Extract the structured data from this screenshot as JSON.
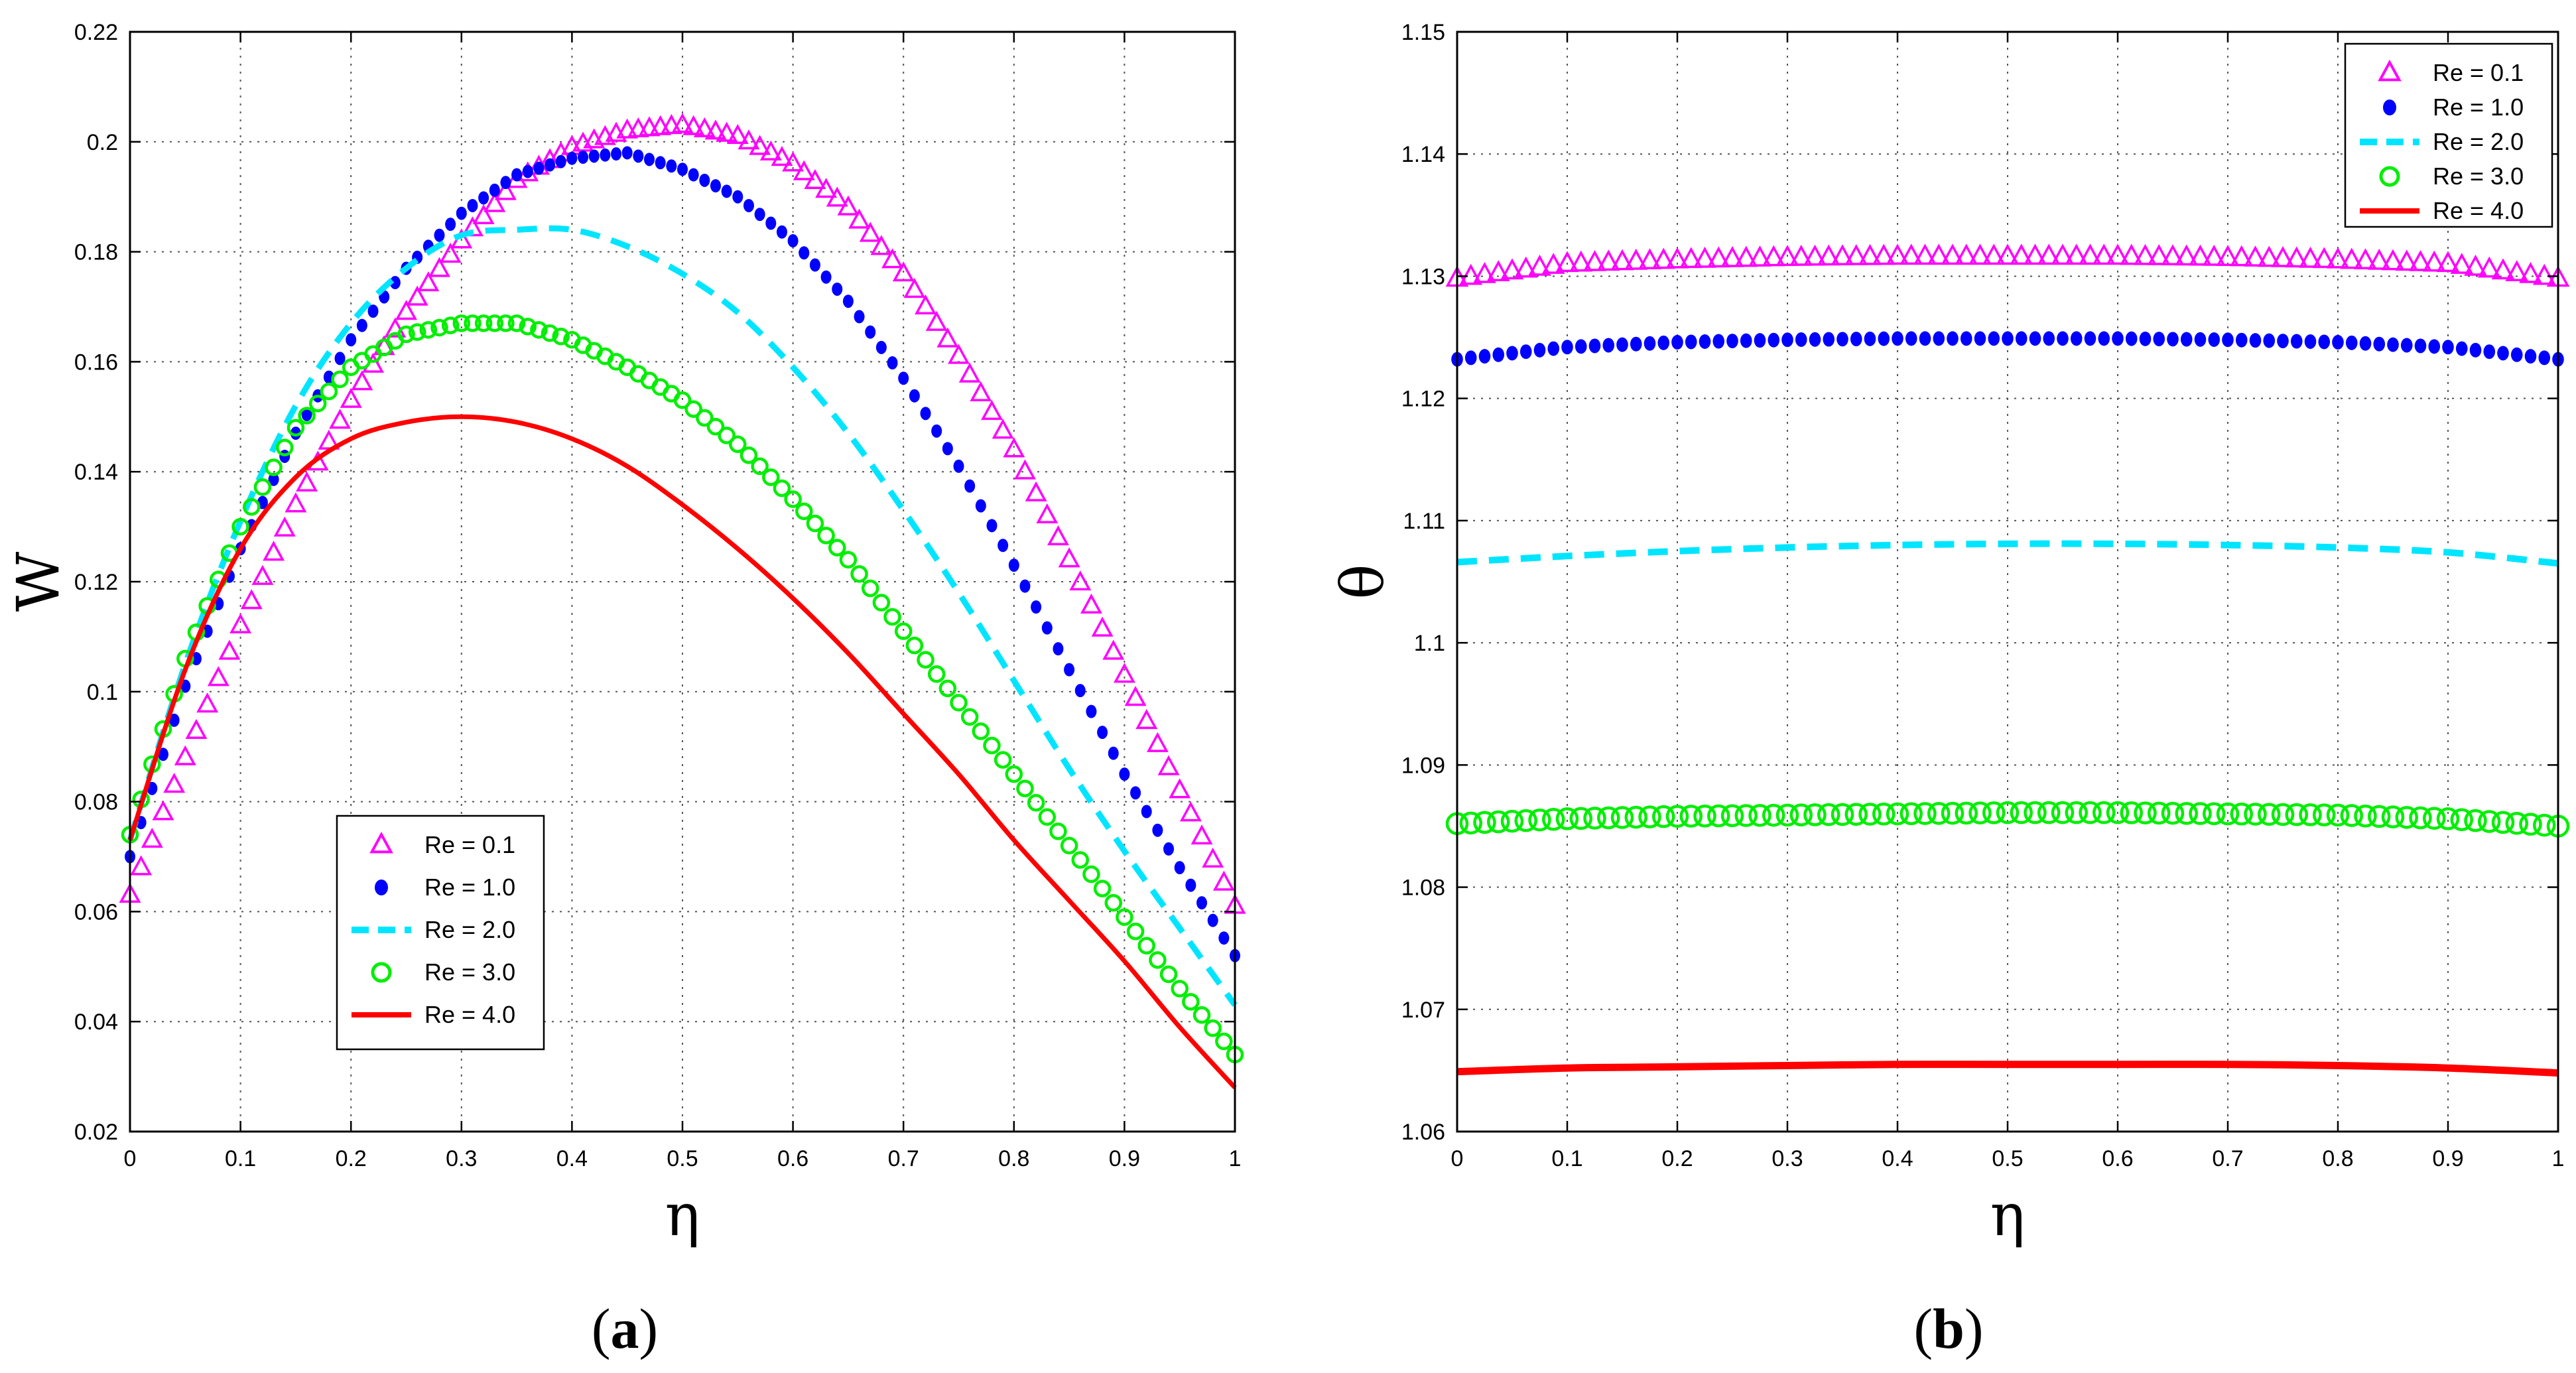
{
  "chart_data": [
    {
      "type": "line",
      "panel_label": "a",
      "xlabel": "η",
      "ylabel": "W",
      "xlim": [
        0,
        1
      ],
      "ylim": [
        0.02,
        0.22
      ],
      "xticks": [
        0,
        0.1,
        0.2,
        0.3,
        0.4,
        0.5,
        0.6,
        0.7,
        0.8,
        0.9,
        1
      ],
      "xtick_labels": [
        "0",
        "0.1",
        "0.2",
        "0.3",
        "0.4",
        "0.5",
        "0.6",
        "0.7",
        "0.8",
        "0.9",
        "1"
      ],
      "yticks": [
        0.02,
        0.04,
        0.06,
        0.08,
        0.1,
        0.12,
        0.14,
        0.16,
        0.18,
        0.2,
        0.22
      ],
      "ytick_labels": [
        "0.02",
        "0.04",
        "0.06",
        "0.08",
        "0.1",
        "0.12",
        "0.14",
        "0.16",
        "0.18",
        "0.2",
        "0.22"
      ],
      "grid": true,
      "legend_position": "lower-center",
      "series": [
        {
          "name": "Re = 0.1",
          "style": "triangle",
          "color": "#ff00ff",
          "x": [
            0,
            0.05,
            0.1,
            0.15,
            0.2,
            0.25,
            0.3,
            0.35,
            0.4,
            0.45,
            0.5,
            0.55,
            0.6,
            0.65,
            0.7,
            0.75,
            0.8,
            0.85,
            0.9,
            0.95,
            1
          ],
          "y": [
            0.063,
            0.088,
            0.112,
            0.134,
            0.153,
            0.169,
            0.182,
            0.193,
            0.199,
            0.202,
            0.203,
            0.201,
            0.196,
            0.188,
            0.176,
            0.161,
            0.144,
            0.124,
            0.103,
            0.082,
            0.061
          ]
        },
        {
          "name": "Re = 1.0",
          "style": "dot",
          "color": "#0000ff",
          "x": [
            0,
            0.05,
            0.1,
            0.15,
            0.2,
            0.25,
            0.3,
            0.35,
            0.4,
            0.45,
            0.5,
            0.55,
            0.6,
            0.65,
            0.7,
            0.75,
            0.8,
            0.85,
            0.9,
            0.95,
            1
          ],
          "y": [
            0.07,
            0.101,
            0.126,
            0.147,
            0.164,
            0.177,
            0.187,
            0.194,
            0.197,
            0.198,
            0.195,
            0.19,
            0.182,
            0.171,
            0.157,
            0.141,
            0.123,
            0.104,
            0.085,
            0.068,
            0.052
          ]
        },
        {
          "name": "Re = 2.0",
          "style": "dash",
          "color": "#00e5ff",
          "x": [
            0,
            0.05,
            0.1,
            0.15,
            0.2,
            0.25,
            0.3,
            0.35,
            0.4,
            0.45,
            0.5,
            0.55,
            0.6,
            0.65,
            0.7,
            0.75,
            0.8,
            0.85,
            0.9,
            0.95,
            1
          ],
          "y": [
            0.073,
            0.105,
            0.131,
            0.152,
            0.167,
            0.177,
            0.183,
            0.184,
            0.184,
            0.181,
            0.176,
            0.169,
            0.159,
            0.147,
            0.133,
            0.118,
            0.102,
            0.086,
            0.071,
            0.057,
            0.043
          ]
        },
        {
          "name": "Re = 3.0",
          "style": "circle",
          "color": "#00ee00",
          "x": [
            0,
            0.05,
            0.1,
            0.15,
            0.2,
            0.25,
            0.3,
            0.35,
            0.4,
            0.45,
            0.5,
            0.55,
            0.6,
            0.65,
            0.7,
            0.75,
            0.8,
            0.85,
            0.9,
            0.95,
            1
          ],
          "y": [
            0.074,
            0.106,
            0.13,
            0.148,
            0.159,
            0.165,
            0.167,
            0.167,
            0.164,
            0.159,
            0.153,
            0.145,
            0.135,
            0.124,
            0.111,
            0.098,
            0.085,
            0.072,
            0.059,
            0.046,
            0.034
          ]
        },
        {
          "name": "Re = 4.0",
          "style": "solid",
          "color": "#ff0000",
          "x": [
            0,
            0.05,
            0.1,
            0.15,
            0.2,
            0.25,
            0.3,
            0.35,
            0.4,
            0.45,
            0.5,
            0.55,
            0.6,
            0.65,
            0.7,
            0.75,
            0.8,
            0.85,
            0.9,
            0.95,
            1
          ],
          "y": [
            0.073,
            0.104,
            0.126,
            0.139,
            0.146,
            0.149,
            0.15,
            0.149,
            0.146,
            0.141,
            0.134,
            0.126,
            0.117,
            0.107,
            0.096,
            0.085,
            0.073,
            0.062,
            0.051,
            0.039,
            0.028
          ]
        }
      ]
    },
    {
      "type": "line",
      "panel_label": "b",
      "xlabel": "η",
      "ylabel": "θ",
      "xlim": [
        0,
        1
      ],
      "ylim": [
        1.06,
        1.15
      ],
      "xticks": [
        0,
        0.1,
        0.2,
        0.3,
        0.4,
        0.5,
        0.6,
        0.7,
        0.8,
        0.9,
        1
      ],
      "xtick_labels": [
        "0",
        "0.1",
        "0.2",
        "0.3",
        "0.4",
        "0.5",
        "0.6",
        "0.7",
        "0.8",
        "0.9",
        "1"
      ],
      "yticks": [
        1.06,
        1.07,
        1.08,
        1.09,
        1.1,
        1.11,
        1.12,
        1.13,
        1.14,
        1.15
      ],
      "ytick_labels": [
        "1.06",
        "1.07",
        "1.08",
        "1.09",
        "1.1",
        "1.11",
        "1.12",
        "1.13",
        "1.14",
        "1.15"
      ],
      "grid": true,
      "legend_position": "top-right",
      "series": [
        {
          "name": "Re = 0.1",
          "style": "triangle",
          "color": "#ff00ff",
          "x": [
            0,
            0.1,
            0.2,
            0.3,
            0.4,
            0.5,
            0.6,
            0.7,
            0.8,
            0.9,
            1
          ],
          "y": [
            1.1298,
            1.131,
            1.1313,
            1.1315,
            1.1316,
            1.1316,
            1.1316,
            1.1315,
            1.1313,
            1.131,
            1.1298
          ]
        },
        {
          "name": "Re = 1.0",
          "style": "dot",
          "color": "#0000ff",
          "x": [
            0,
            0.1,
            0.2,
            0.3,
            0.4,
            0.5,
            0.6,
            0.7,
            0.8,
            0.9,
            1
          ],
          "y": [
            1.1232,
            1.1242,
            1.1246,
            1.1248,
            1.1249,
            1.1249,
            1.1249,
            1.1248,
            1.1246,
            1.1242,
            1.1232
          ]
        },
        {
          "name": "Re = 2.0",
          "style": "dash",
          "color": "#00e5ff",
          "x": [
            0,
            0.1,
            0.2,
            0.3,
            0.4,
            0.5,
            0.6,
            0.7,
            0.8,
            0.9,
            1
          ],
          "y": [
            1.1066,
            1.1071,
            1.1075,
            1.1078,
            1.108,
            1.1081,
            1.1081,
            1.108,
            1.1078,
            1.1074,
            1.1065
          ]
        },
        {
          "name": "Re = 3.0",
          "style": "circle",
          "color": "#00ee00",
          "x": [
            0,
            0.1,
            0.2,
            0.3,
            0.4,
            0.5,
            0.6,
            0.7,
            0.8,
            0.9,
            1
          ],
          "y": [
            1.0852,
            1.0856,
            1.0858,
            1.0859,
            1.086,
            1.0861,
            1.0861,
            1.086,
            1.0859,
            1.0856,
            1.085
          ]
        },
        {
          "name": "Re = 4.0",
          "style": "solid",
          "color": "#ff0000",
          "x": [
            0,
            0.1,
            0.2,
            0.3,
            0.4,
            0.5,
            0.6,
            0.7,
            0.8,
            0.9,
            1
          ],
          "y": [
            1.0649,
            1.0652,
            1.0653,
            1.0654,
            1.0655,
            1.0655,
            1.0655,
            1.0655,
            1.0654,
            1.0652,
            1.0648
          ]
        }
      ]
    }
  ]
}
